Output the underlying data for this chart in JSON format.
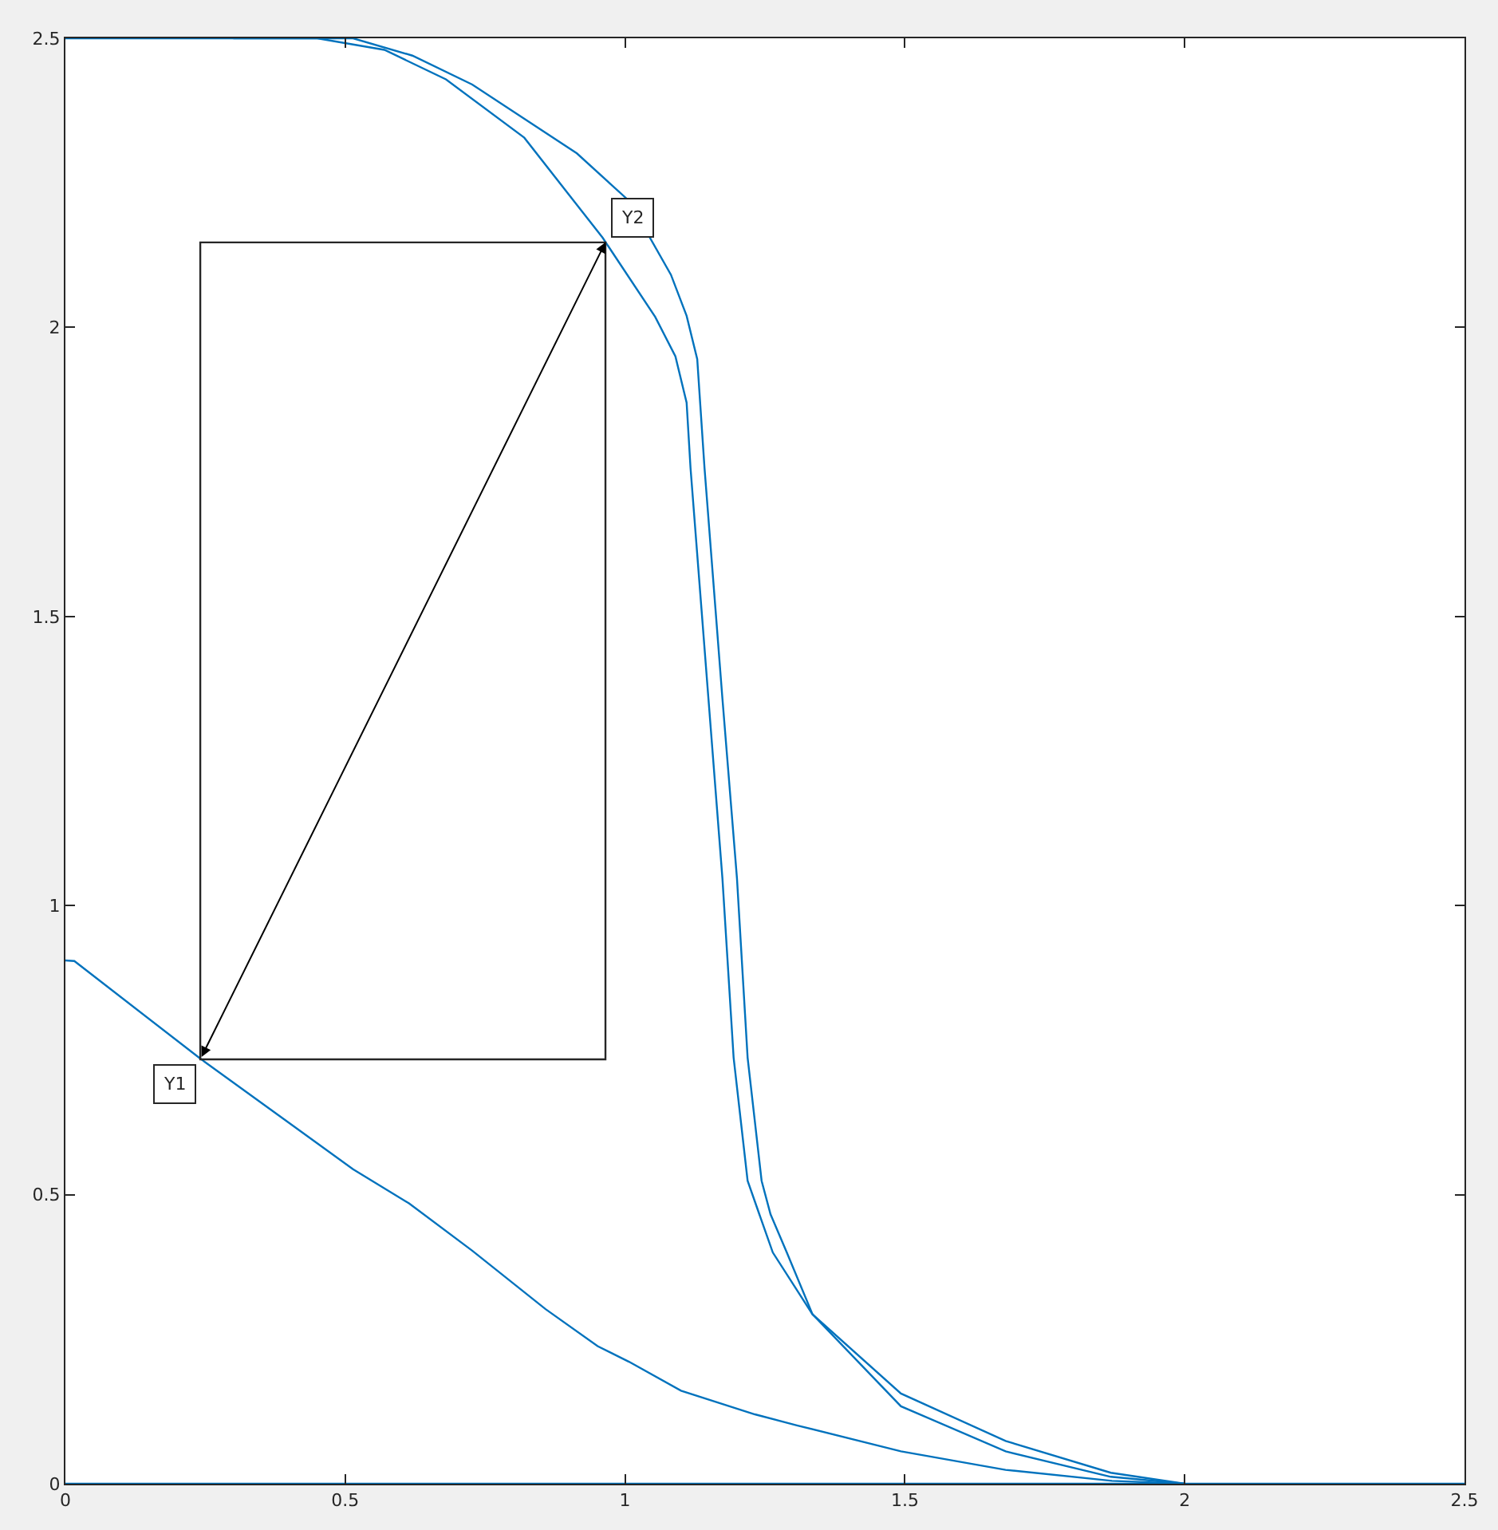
{
  "chart_data": {
    "type": "line",
    "xlim": [
      0,
      2.5
    ],
    "ylim": [
      0,
      2.5
    ],
    "xticks": [
      0,
      0.5,
      1,
      1.5,
      2,
      2.5
    ],
    "yticks": [
      0,
      0.5,
      1,
      1.5,
      2,
      2.5
    ],
    "legend": false,
    "marker": "none",
    "line_style": "solid",
    "series": [
      {
        "color": "#0072bd",
        "x": [
          0,
          0.016,
          0.24,
          0.39,
          0.514,
          0.614,
          0.727,
          0.858,
          0.951,
          1.007,
          1.1,
          1.232,
          1.307,
          1.493,
          1.68,
          1.87,
          2.0
        ],
        "values": [
          0.905,
          0.904,
          0.736,
          0.631,
          0.544,
          0.485,
          0.403,
          0.302,
          0.238,
          0.211,
          0.161,
          0.12,
          0.101,
          0.056,
          0.024,
          0.005,
          0
        ]
      },
      {
        "color": "#0072bd",
        "x": [
          0.3,
          0.514,
          0.62,
          0.727,
          0.914,
          1.007,
          1.082,
          1.11,
          1.129,
          1.142,
          1.174,
          1.2,
          1.219,
          1.244,
          1.26,
          1.289,
          1.335,
          1.493,
          1.68,
          1.868,
          2.0
        ],
        "values": [
          2.5,
          2.5,
          2.47,
          2.42,
          2.301,
          2.219,
          2.091,
          2.02,
          1.945,
          1.757,
          1.358,
          1.047,
          0.737,
          0.524,
          0.466,
          0.4,
          0.293,
          0.134,
          0.056,
          0.012,
          0
        ]
      },
      {
        "color": "#0072bd",
        "x": [
          0,
          0.3,
          0.45,
          0.57,
          0.68,
          0.82,
          0.96,
          1.054,
          1.09,
          1.11,
          1.117,
          1.149,
          1.174,
          1.194,
          1.219,
          1.24,
          1.264,
          1.335,
          1.493,
          1.68,
          1.868,
          2.0
        ],
        "values": [
          2.5,
          2.5,
          2.5,
          2.48,
          2.429,
          2.328,
          2.155,
          2.018,
          1.95,
          1.87,
          1.757,
          1.358,
          1.047,
          0.737,
          0.524,
          0.466,
          0.4,
          0.293,
          0.156,
          0.074,
          0.019,
          0
        ]
      },
      {
        "color": "#0072bd",
        "x": [
          0,
          2.5
        ],
        "values": [
          0,
          0
        ]
      }
    ],
    "annotations": [
      {
        "text": "Y1",
        "x": 0.241,
        "y": 0.734
      },
      {
        "text": "Y2",
        "x": 0.965,
        "y": 2.147
      }
    ]
  }
}
